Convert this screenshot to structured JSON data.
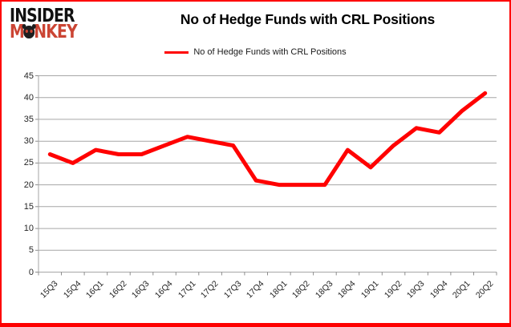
{
  "brand": {
    "line1": "INSIDER",
    "line2_pre": "M",
    "line2_post": "NKEY",
    "color_top": "#111111",
    "color_bottom": "#cb4534"
  },
  "header": {
    "title": "No of Hedge Funds with CRL Positions"
  },
  "legend": {
    "label": "No of Hedge Funds with CRL Positions",
    "color": "#ff0000"
  },
  "frame": {
    "border_color": "#fe0000"
  },
  "chart_data": {
    "type": "line",
    "title": "No of Hedge Funds with CRL Positions",
    "categories": [
      "15Q3",
      "15Q4",
      "16Q1",
      "16Q2",
      "16Q3",
      "16Q4",
      "17Q1",
      "17Q2",
      "17Q3",
      "17Q4",
      "18Q1",
      "18Q2",
      "18Q3",
      "18Q4",
      "19Q1",
      "19Q2",
      "19Q3",
      "19Q4",
      "20Q1",
      "20Q2"
    ],
    "series": [
      {
        "name": "No of Hedge Funds with CRL Positions",
        "color": "#ff0000",
        "values": [
          27,
          25,
          28,
          27,
          27,
          29,
          31,
          30,
          29,
          21,
          20,
          20,
          20,
          28,
          24,
          29,
          33,
          32,
          37,
          41
        ]
      }
    ],
    "xlabel": "",
    "ylabel": "",
    "ylim": [
      0,
      45
    ],
    "ytick_step": 5,
    "grid": true,
    "gridline_color": "#a6a6a6",
    "axis_color": "#8c8c8c",
    "legend_position": "top"
  }
}
